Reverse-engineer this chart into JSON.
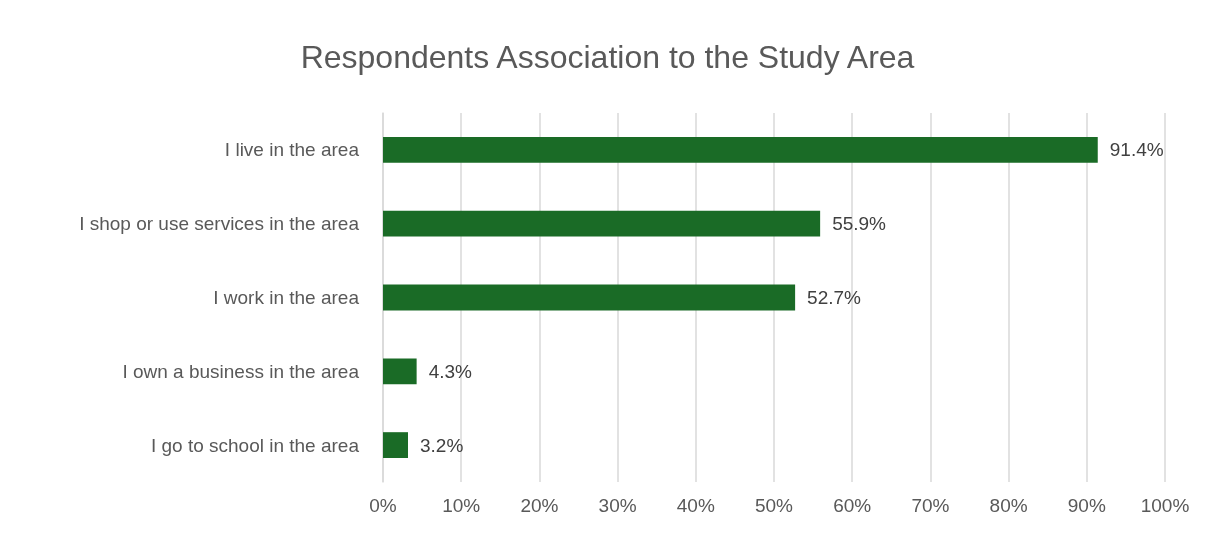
{
  "chart_data": {
    "type": "bar",
    "orientation": "horizontal",
    "title": "Respondents Association to the Study Area",
    "categories": [
      "I live in the area",
      "I shop or use services in the area",
      "I work in the area",
      "I own a business in the area",
      "I go to school in the area"
    ],
    "values": [
      91.4,
      55.9,
      52.7,
      4.3,
      3.2
    ],
    "value_labels": [
      "91.4%",
      "55.9%",
      "52.7%",
      "4.3%",
      "3.2%"
    ],
    "color": "#1a6b26",
    "xlim": [
      0,
      100
    ],
    "xticks": [
      {
        "value": 0,
        "label": "0%"
      },
      {
        "value": 10,
        "label": "10%"
      },
      {
        "value": 20,
        "label": "20%"
      },
      {
        "value": 30,
        "label": "30%"
      },
      {
        "value": 40,
        "label": "40%"
      },
      {
        "value": 50,
        "label": "50%"
      },
      {
        "value": 60,
        "label": "60%"
      },
      {
        "value": 70,
        "label": "70%"
      },
      {
        "value": 80,
        "label": "80%"
      },
      {
        "value": 90,
        "label": "90%"
      },
      {
        "value": 100,
        "label": "100%"
      }
    ],
    "grid": "x"
  }
}
